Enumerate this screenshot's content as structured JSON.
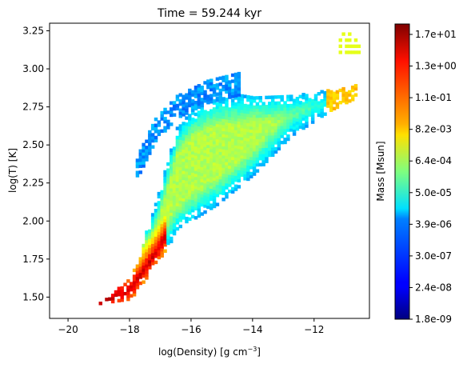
{
  "chart_data": {
    "type": "heatmap",
    "title": "Time = 59.244 kyr",
    "xlabel": "log(Density) [g cm",
    "xlabel_sup": "−3",
    "xlabel_tail": "]",
    "ylabel": "log(T) [K]",
    "xlim": [
      -20.6,
      -10.2
    ],
    "ylim": [
      1.36,
      3.3
    ],
    "x_ticks": [
      -20,
      -18,
      -16,
      -14,
      -12
    ],
    "x_tick_labels": [
      "−20",
      "−18",
      "−16",
      "−14",
      "−12"
    ],
    "y_ticks": [
      1.5,
      1.75,
      2.0,
      2.25,
      2.5,
      2.75,
      3.0,
      3.25
    ],
    "y_tick_labels": [
      "1.50",
      "1.75",
      "2.00",
      "2.25",
      "2.50",
      "2.75",
      "3.00",
      "3.25"
    ],
    "colorbar": {
      "label": "Mass [Msun]",
      "colormap": "jet",
      "tick_labels": [
        "1.8e-09",
        "2.4e-08",
        "3.0e-07",
        "3.9e-06",
        "5.0e-05",
        "6.4e-04",
        "8.2e-03",
        "1.1e-01",
        "1.3e+00",
        "1.7e+01"
      ]
    },
    "grid": false,
    "regions": [
      {
        "name": "main-band",
        "x": [
          -19.0,
          -18.0,
          -17.2,
          -16.5,
          -16.0,
          -15.2,
          -14.0,
          -12.8,
          -11.5,
          -10.7
        ],
        "y_low": [
          1.45,
          1.48,
          1.7,
          1.92,
          2.0,
          2.1,
          2.3,
          2.55,
          2.72,
          2.8
        ],
        "y_high": [
          1.45,
          1.62,
          2.1,
          2.6,
          2.72,
          2.8,
          2.82,
          2.82,
          2.85,
          2.88
        ]
      },
      {
        "name": "ridge-peak",
        "x": [
          -19.0,
          -18.0,
          -17.2,
          -16.8
        ],
        "y": [
          1.45,
          1.55,
          1.78,
          1.92
        ],
        "level": 0.93
      },
      {
        "name": "upper-plume",
        "x": [
          -17.8,
          -17.2,
          -16.5,
          -15.5,
          -14.5
        ],
        "y": [
          2.35,
          2.6,
          2.75,
          2.85,
          2.9
        ],
        "level": 0.22
      },
      {
        "name": "high-density-patch",
        "x": [
          -11.2,
          -10.6
        ],
        "y": [
          3.1,
          3.25
        ],
        "level": 0.6
      }
    ]
  }
}
